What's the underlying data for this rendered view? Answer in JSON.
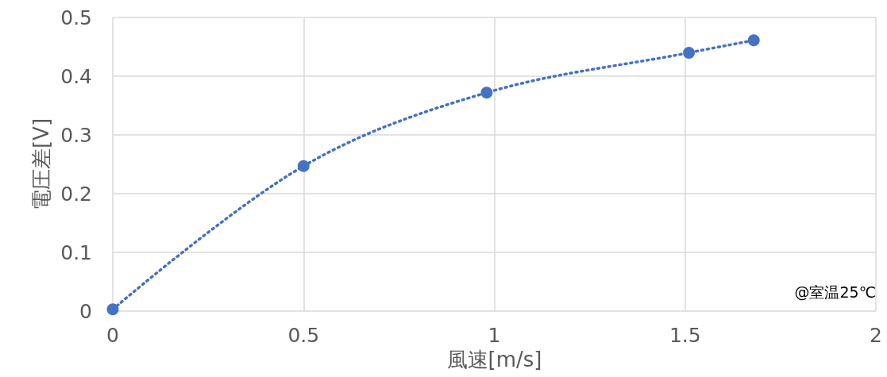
{
  "chart_data": {
    "type": "line",
    "xlabel": "風速[m/s]",
    "ylabel": "電圧差[V]",
    "x": [
      0,
      0.5,
      0.98,
      1.51,
      1.68
    ],
    "series": [
      {
        "color": "#4472c4",
        "values": [
          0.003,
          0.247,
          0.372,
          0.44,
          0.461
        ]
      }
    ],
    "xlim": [
      0,
      2
    ],
    "xticks": [
      0,
      0.5,
      1,
      1.5,
      2
    ],
    "ylim": [
      0,
      0.5
    ],
    "yticks": [
      0,
      0.1,
      0.2,
      0.3,
      0.4,
      0.5
    ],
    "grid": true,
    "marker": "circle",
    "line_style": "dotted",
    "annotations": [
      "@室温25℃"
    ]
  }
}
